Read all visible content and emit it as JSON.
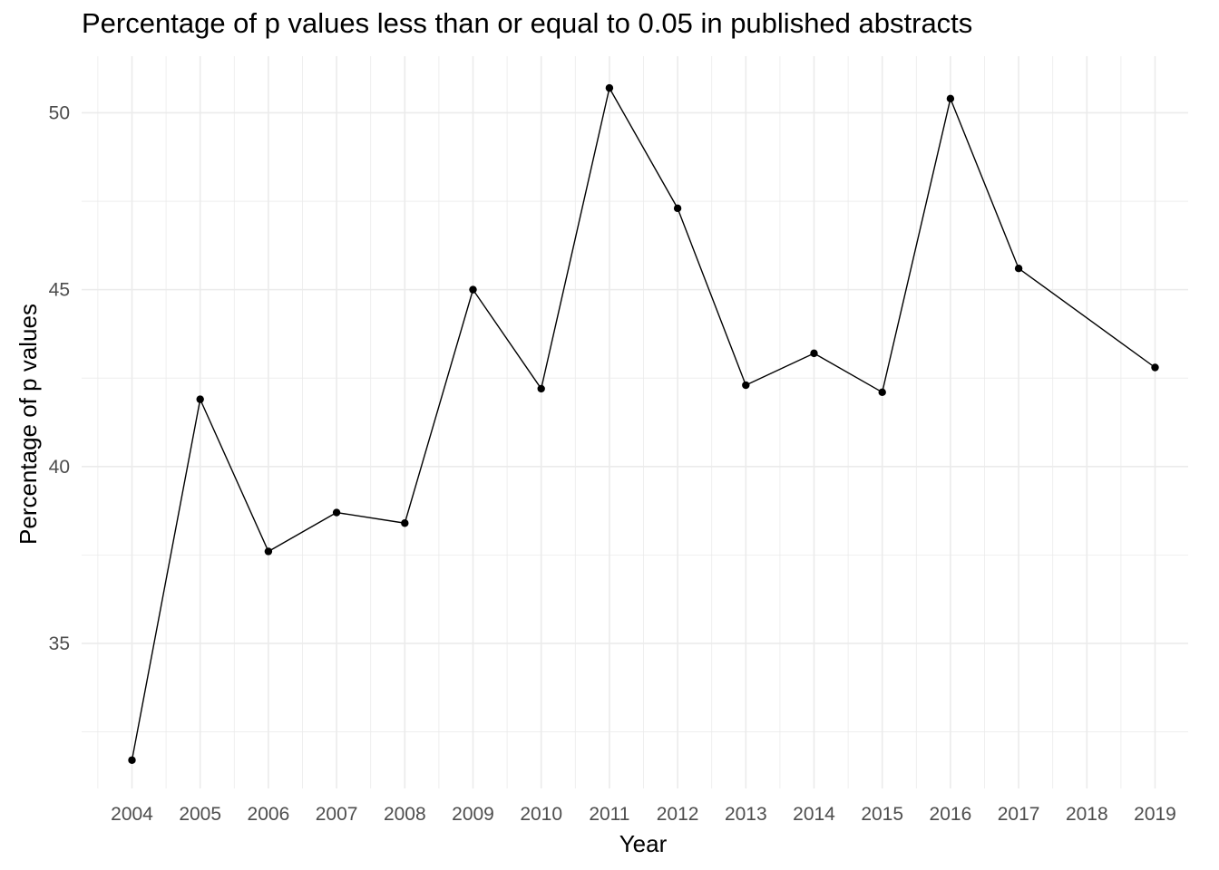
{
  "chart_data": {
    "type": "line",
    "title": "Percentage of p values less than or equal to 0.05 in published abstracts",
    "xlabel": "Year",
    "ylabel": "Percentage of p values",
    "x": [
      "2004",
      "2005",
      "2006",
      "2007",
      "2008",
      "2009",
      "2010",
      "2011",
      "2012",
      "2013",
      "2014",
      "2015",
      "2016",
      "2017",
      "2018",
      "2019"
    ],
    "series": [
      {
        "x": [
          "2004",
          "2005",
          "2006",
          "2007",
          "2008",
          "2009",
          "2010",
          "2011",
          "2012",
          "2013",
          "2014",
          "2015",
          "2016",
          "2017",
          "2019"
        ],
        "values": [
          31.7,
          41.9,
          37.6,
          38.7,
          38.4,
          45.0,
          42.2,
          50.7,
          47.3,
          42.3,
          43.2,
          42.1,
          50.4,
          45.6,
          42.8
        ]
      }
    ],
    "yticks": [
      35,
      40,
      45,
      50
    ],
    "ylim": [
      30.9,
      51.6
    ],
    "grid": true,
    "legend": "none",
    "colors": {
      "line": "#000000",
      "grid": "#ebebeb"
    }
  }
}
